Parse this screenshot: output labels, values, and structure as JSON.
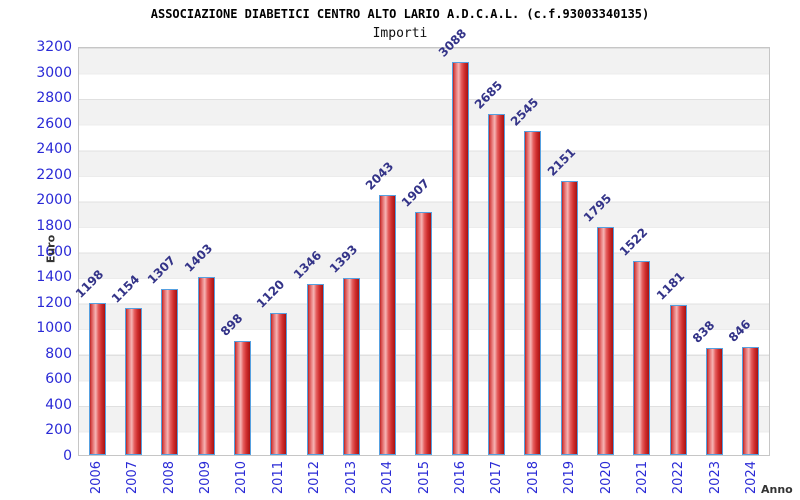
{
  "header": {
    "title": "ASSOCIAZIONE DIABETICI CENTRO ALTO LARIO A.D.C.A.L. (c.f.93003340135)",
    "subtitle": "Importi"
  },
  "chart_data": {
    "type": "bar",
    "title": "ASSOCIAZIONE DIABETICI CENTRO ALTO LARIO A.D.C.A.L. (c.f.93003340135)",
    "subtitle": "Importi",
    "xlabel": "Anno",
    "ylabel": "Euro",
    "categories": [
      "2006",
      "2007",
      "2008",
      "2009",
      "2010",
      "2011",
      "2012",
      "2013",
      "2014",
      "2015",
      "2016",
      "2017",
      "2018",
      "2019",
      "2020",
      "2021",
      "2022",
      "2023",
      "2024"
    ],
    "values": [
      1198,
      1154,
      1307,
      1403,
      898,
      1120,
      1346,
      1393,
      2043,
      1907,
      3088,
      2685,
      2545,
      2151,
      1795,
      1522,
      1181,
      838,
      846
    ],
    "ylim": [
      0,
      3200
    ],
    "y_ticks": [
      0,
      200,
      400,
      600,
      800,
      1000,
      1200,
      1400,
      1600,
      1800,
      2000,
      2200,
      2400,
      2600,
      2800,
      3000,
      3200
    ],
    "grid": "horizontal gridlines every 200 with alternating gray/white 200-unit bands",
    "legend": "none",
    "colors": {
      "bar_border": "#55a0e0",
      "bar_fill_dark": "#b82222",
      "bar_fill_light": "#f5b4b4",
      "axis_tick_label": "#2a2ad6",
      "bar_value_label": "#333388",
      "axis_title": "#333333",
      "band_gray": "#f2f2f2",
      "plot_border": "#c6c6c6"
    }
  }
}
